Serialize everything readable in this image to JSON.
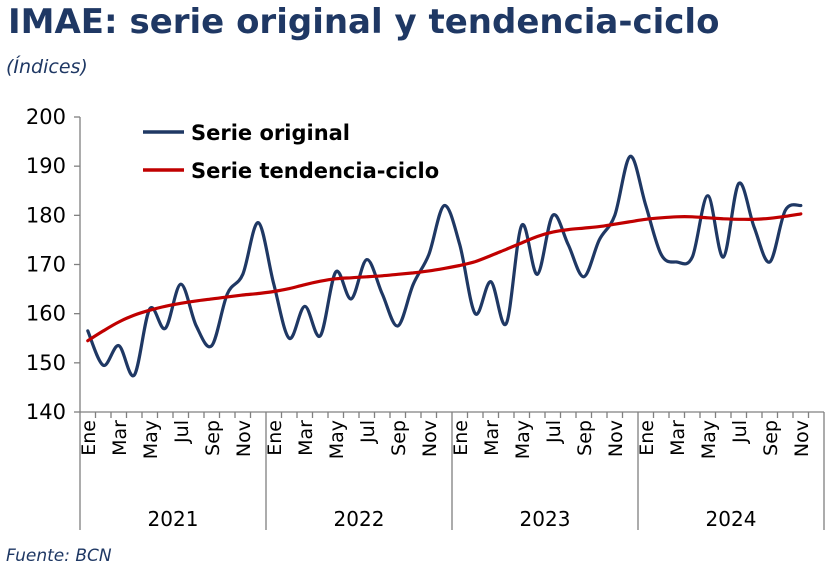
{
  "title": "IMAE: serie original y tendencia-ciclo",
  "subtitle": "(Índices)",
  "source": "Fuente: BCN",
  "colors": {
    "original": "#1f3864",
    "trend": "#c00000",
    "title": "#1f3864"
  },
  "chart_data": {
    "type": "line",
    "ylim": [
      140,
      200
    ],
    "yticks": [
      140,
      150,
      160,
      170,
      180,
      190,
      200
    ],
    "legend_position": "top-left",
    "grid": false,
    "month_labels": [
      "Ene",
      "Mar",
      "May",
      "Jul",
      "Sep",
      "Nov",
      "Ene",
      "Mar",
      "May",
      "Jul",
      "Sep",
      "Nov",
      "Ene",
      "Mar",
      "May",
      "Jul",
      "Sep",
      "Nov",
      "Ene",
      "Mar",
      "May",
      "Jul",
      "Sep",
      "Nov"
    ],
    "years": [
      "2021",
      "2022",
      "2023",
      "2024"
    ],
    "series": [
      {
        "name": "Serie original",
        "values": [
          156.5,
          149.5,
          153.5,
          147.5,
          161,
          157,
          166,
          157.5,
          153.5,
          164,
          168,
          178.5,
          166,
          155,
          161.5,
          155.5,
          168.5,
          163,
          171,
          164,
          157.5,
          166,
          172,
          182,
          174,
          160,
          166.5,
          158,
          178,
          168,
          180,
          174,
          167.5,
          175,
          180,
          192,
          182,
          172,
          170.5,
          171.5,
          184,
          171.5,
          186.5,
          177.5,
          170.5,
          181,
          182
        ]
      },
      {
        "name": "Serie tendencia-ciclo",
        "values": [
          154.5,
          156.5,
          158.3,
          159.7,
          160.7,
          161.5,
          162.1,
          162.6,
          163,
          163.4,
          163.8,
          164.1,
          164.5,
          165.1,
          165.9,
          166.6,
          167.1,
          167.3,
          167.5,
          167.7,
          168,
          168.3,
          168.7,
          169.2,
          169.8,
          170.6,
          171.8,
          173.1,
          174.4,
          175.7,
          176.6,
          177.1,
          177.4,
          177.7,
          178.2,
          178.7,
          179.2,
          179.5,
          179.7,
          179.7,
          179.5,
          179.3,
          179.2,
          179.2,
          179.4,
          179.8,
          180.3
        ]
      }
    ]
  }
}
